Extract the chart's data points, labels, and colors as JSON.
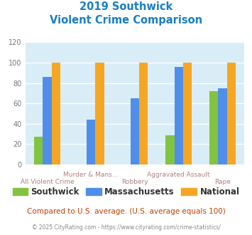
{
  "title_line1": "2019 Southwick",
  "title_line2": "Violent Crime Comparison",
  "categories_top": [
    "Murder & Mans...",
    "",
    "Aggravated Assault",
    ""
  ],
  "categories_bot": [
    "All Violent Crime",
    "",
    "Robbery",
    "",
    "Rape"
  ],
  "southwick": [
    27,
    0,
    0,
    29,
    72
  ],
  "massachusetts": [
    86,
    44,
    65,
    96,
    75
  ],
  "national": [
    100,
    100,
    100,
    100,
    100
  ],
  "color_southwick": "#82c341",
  "color_massachusetts": "#4f8fea",
  "color_national": "#f5a623",
  "ylim": [
    0,
    120
  ],
  "yticks": [
    0,
    20,
    40,
    60,
    80,
    100,
    120
  ],
  "bg_color": "#d9edf7",
  "legend_labels": [
    "Southwick",
    "Massachusetts",
    "National"
  ],
  "footnote1": "Compared to U.S. average. (U.S. average equals 100)",
  "footnote2": "© 2025 CityRating.com - https://www.cityrating.com/crime-statistics/",
  "title_color": "#1a7ec8",
  "footnote1_color": "#c04000",
  "footnote2_color": "#888888",
  "xtick_color": "#b08080"
}
